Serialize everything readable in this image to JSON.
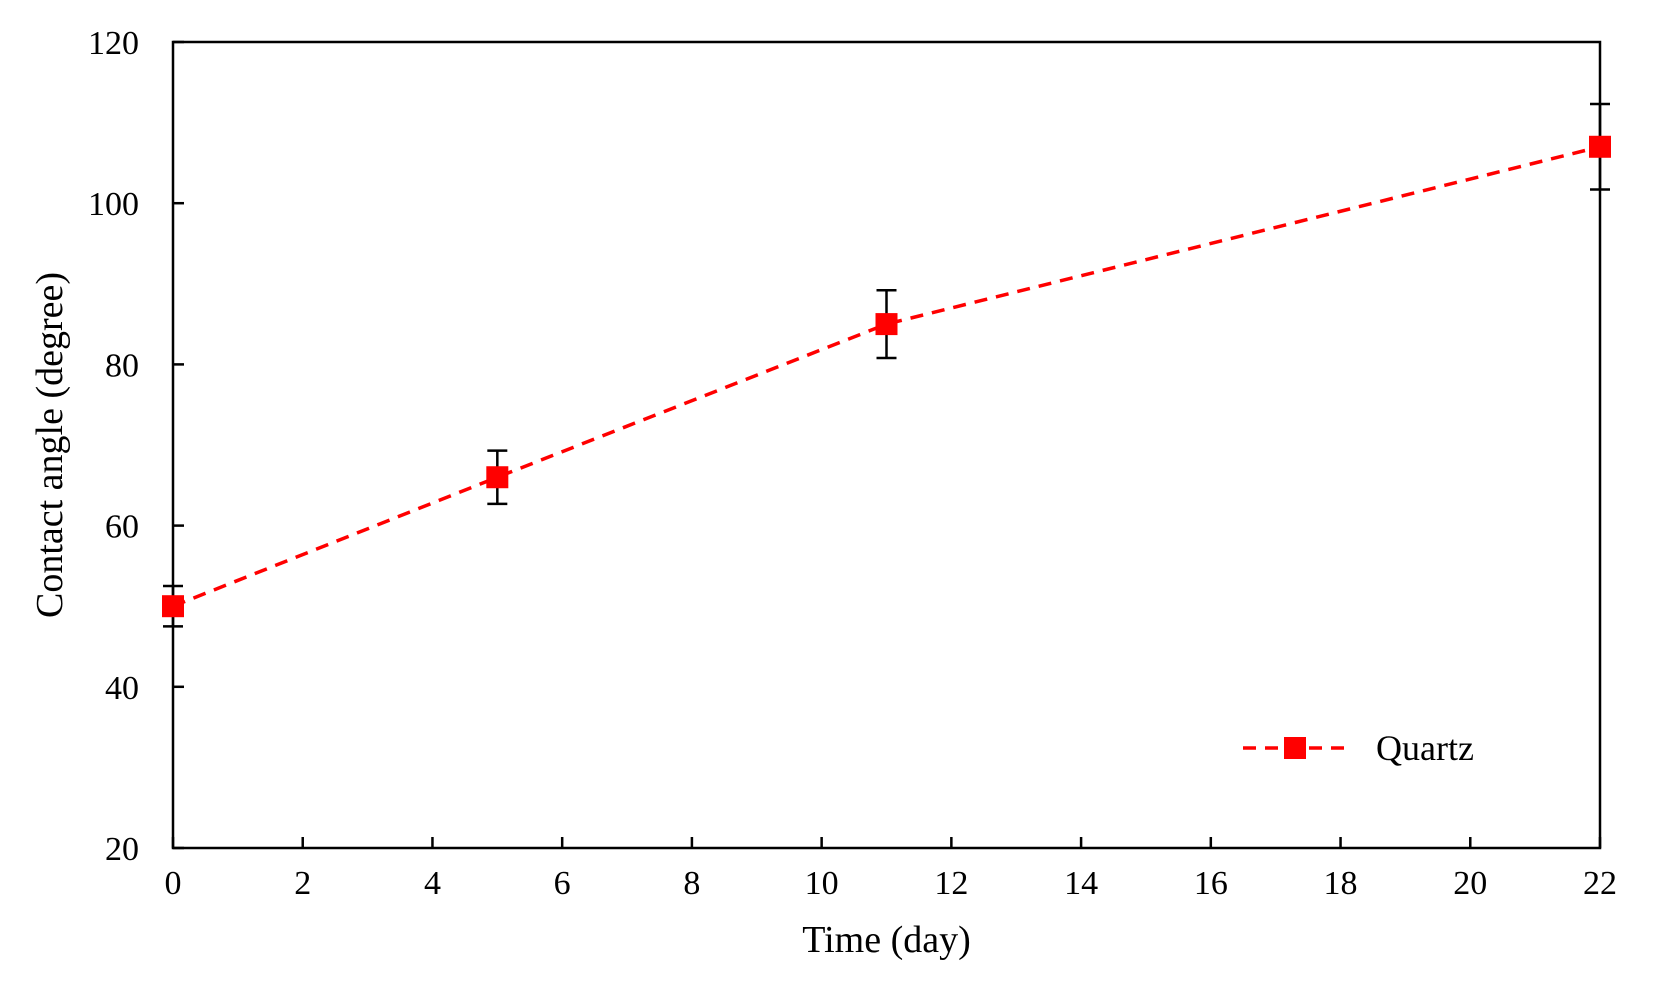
{
  "chart_data": {
    "type": "line",
    "title": "",
    "xlabel": "Time (day)",
    "ylabel": "Contact angle (degree)",
    "xlim": [
      0,
      22
    ],
    "ylim": [
      20,
      120
    ],
    "x_ticks": [
      0,
      2,
      4,
      6,
      8,
      10,
      12,
      14,
      16,
      18,
      20,
      22
    ],
    "y_ticks": [
      20,
      40,
      60,
      80,
      100,
      120
    ],
    "grid": false,
    "legend_position": "bottom-right",
    "series": [
      {
        "name": "Quartz",
        "color": "#ff0000",
        "line_style": "dashed",
        "marker": "square",
        "x": [
          0,
          5,
          11,
          22
        ],
        "y": [
          50,
          66,
          85,
          107
        ],
        "error": [
          2.5,
          3.3,
          4.2,
          5.3
        ]
      }
    ]
  }
}
